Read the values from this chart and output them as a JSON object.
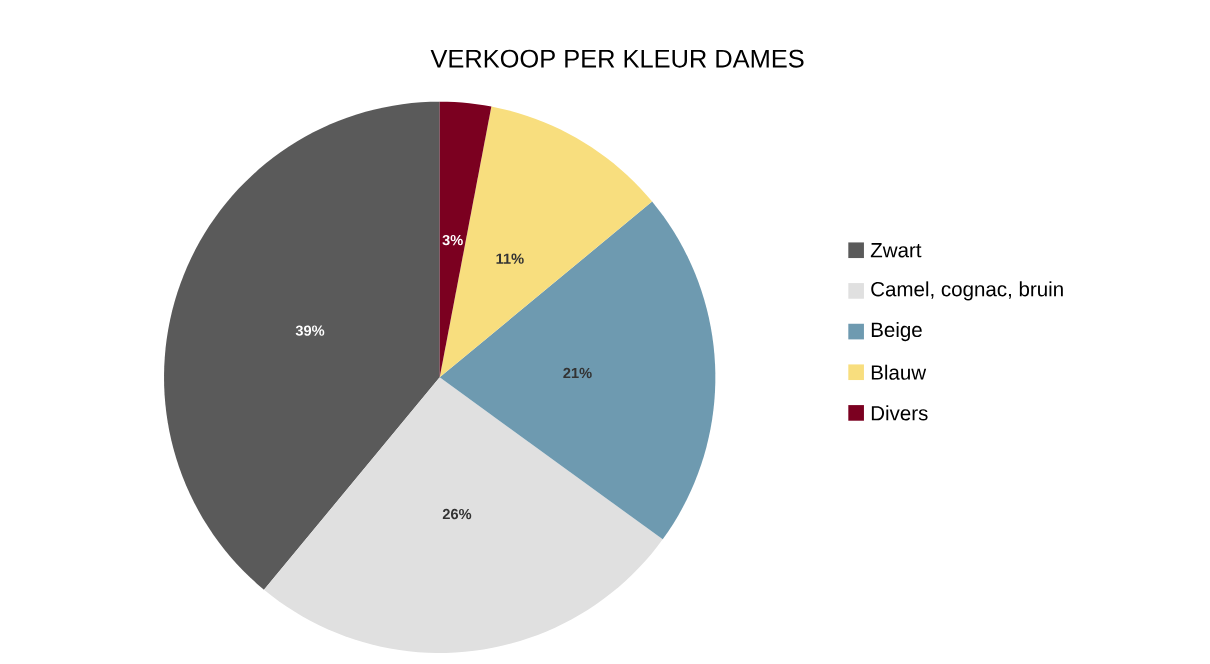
{
  "chart_data": {
    "type": "pie",
    "title": "VERKOOP PER KLEUR DAMES",
    "categories": [
      "Zwart",
      "Camel, cognac, bruin",
      "Beige",
      "Blauw",
      "Divers"
    ],
    "values": [
      39,
      26,
      21,
      11,
      3
    ],
    "colors": [
      "#5a5a5a",
      "#e0e0e0",
      "#6e9ab0",
      "#f8de7e",
      "#7b0020"
    ],
    "value_labels": [
      "39%",
      "26%",
      "21%",
      "11%",
      "3%"
    ],
    "legend": "right"
  }
}
